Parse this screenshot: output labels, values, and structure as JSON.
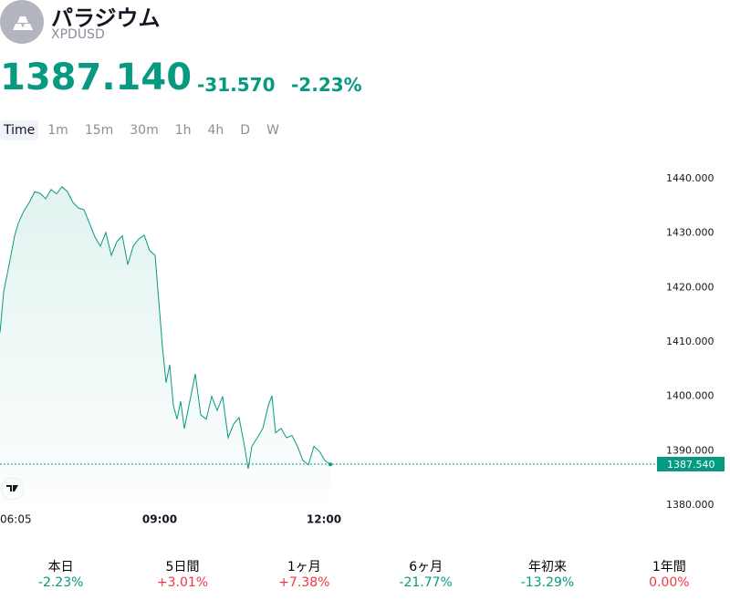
{
  "header": {
    "title": "パラジウム",
    "symbol": "XPDUSD",
    "price": "1387.140",
    "change": "-31.570",
    "change_pct": "-2.23%",
    "color": "#089981"
  },
  "tabs": [
    "Time",
    "1m",
    "15m",
    "30m",
    "1h",
    "4h",
    "D",
    "W"
  ],
  "chart_data": {
    "type": "line",
    "color": "#089981",
    "x": [
      365,
      369,
      375,
      381,
      385,
      391,
      397,
      403,
      409,
      415,
      421,
      427,
      433,
      439,
      445,
      451,
      457,
      463,
      469,
      475,
      481,
      487,
      493,
      499,
      505,
      511,
      517,
      523,
      529,
      535,
      539,
      543,
      547,
      551,
      555,
      559,
      563,
      567,
      573,
      579,
      585,
      591,
      597,
      603,
      609,
      615,
      621,
      627,
      633,
      637,
      641,
      647,
      653,
      659,
      663,
      667,
      673,
      679,
      685,
      691,
      697,
      703,
      709,
      715,
      721,
      727
    ],
    "values": [
      1411.7,
      1419.2,
      1424.2,
      1429.5,
      1431.8,
      1434,
      1435.6,
      1437.6,
      1437.3,
      1436.3,
      1438,
      1437.2,
      1438.5,
      1437.6,
      1435.6,
      1434.6,
      1434.3,
      1431.8,
      1429.3,
      1427.6,
      1430.1,
      1425.9,
      1428.4,
      1429.5,
      1424.2,
      1427.6,
      1428.9,
      1429.6,
      1426.8,
      1425.9,
      1417.5,
      1409.1,
      1402.5,
      1405.8,
      1398.3,
      1395.8,
      1399.1,
      1394.1,
      1399.1,
      1404.1,
      1396.6,
      1395.8,
      1400,
      1397.4,
      1400,
      1392.4,
      1394.9,
      1396.1,
      1390.8,
      1386.7,
      1390.8,
      1392.4,
      1394.1,
      1398.3,
      1400.1,
      1393.3,
      1394.1,
      1392.4,
      1392.8,
      1390.8,
      1388.2,
      1387.4,
      1390.8,
      1389.9,
      1388.2,
      1387.5
    ],
    "xlim": [
      365,
      1065
    ],
    "xticks": [
      {
        "value": 365,
        "label": "06:05"
      },
      {
        "value": 540,
        "label": "09:00"
      },
      {
        "value": 720,
        "label": "12:00"
      }
    ],
    "ylim": [
      1380,
      1443.5
    ],
    "yticks": [
      {
        "value": 1380,
        "label": "1380.000"
      },
      {
        "value": 1390,
        "label": "1390.000"
      },
      {
        "value": 1400,
        "label": "1400.000"
      },
      {
        "value": 1410,
        "label": "1410.000"
      },
      {
        "value": 1420,
        "label": "1420.000"
      },
      {
        "value": 1430,
        "label": "1430.000"
      },
      {
        "value": 1440,
        "label": "1440.000"
      }
    ],
    "last_price": {
      "value": 1387.54,
      "label": "1387.540"
    }
  },
  "performance": [
    {
      "label": "本日",
      "value": "-2.23%",
      "color": "#089981"
    },
    {
      "label": "5日間",
      "value": "+3.01%",
      "color": "#f23645"
    },
    {
      "label": "1ヶ月",
      "value": "+7.38%",
      "color": "#f23645"
    },
    {
      "label": "6ヶ月",
      "value": "-21.77%",
      "color": "#089981"
    },
    {
      "label": "年初来",
      "value": "-13.29%",
      "color": "#089981"
    },
    {
      "label": "1年間",
      "value": "0.00%",
      "color": "#f23645"
    }
  ]
}
